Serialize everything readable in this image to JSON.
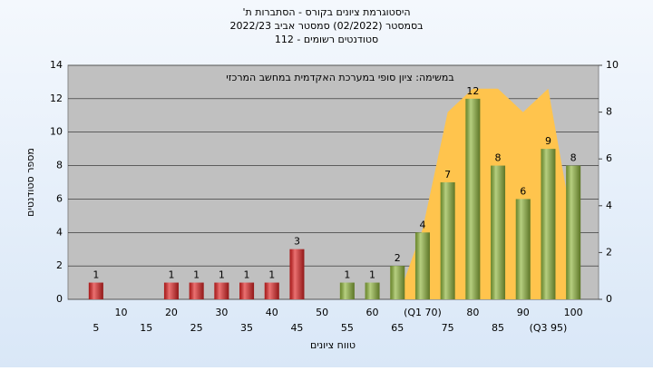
{
  "chart_data": {
    "type": "bar",
    "title": "'היסטוגרמת ציונים בקורס - הסתברות ת",
    "subtitle": "בסמסטר  (02/2022)  סמסטר אביב 2022/23",
    "subtitle2": "סטודנטים רשומים - 112",
    "annotation": "במשימה: ציון סופי במערכת האקדמית במחשב המרכזי",
    "x_label": "טווח ציונים",
    "y_label": "מספר סטודנטים",
    "categories": [
      "5",
      "10",
      "15",
      "20",
      "25",
      "30",
      "35",
      "40",
      "45",
      "50",
      "55",
      "60",
      "65",
      "(Q1 70)",
      "75",
      "80",
      "85",
      "90",
      "(Q3 95)",
      "100"
    ],
    "series": [
      {
        "type": "bar",
        "values": [
          1,
          0,
          0,
          1,
          1,
          1,
          1,
          1,
          3,
          0,
          1,
          1,
          2,
          4,
          7,
          12,
          8,
          6,
          9,
          8
        ],
        "colors": [
          "#e02424",
          "#e02424",
          "#e02424",
          "#e02424",
          "#e02424",
          "#e02424",
          "#e02424",
          "#e02424",
          "#e02424",
          "#e02424",
          "#8fb53c",
          "#8fb53c",
          "#8fb53c",
          "#8fb53c",
          "#8fb53c",
          "#8fb53c",
          "#8fb53c",
          "#8fb53c",
          "#8fb53c",
          "#8fb53c"
        ]
      },
      {
        "type": "area",
        "axis": "y2",
        "color": "#ffc44d",
        "values": [
          null,
          null,
          null,
          null,
          null,
          null,
          null,
          null,
          null,
          null,
          null,
          null,
          0,
          3,
          8,
          9,
          9,
          8,
          9,
          3
        ]
      }
    ],
    "ylim": [
      0,
      14
    ],
    "yticks": [
      0,
      2,
      4,
      6,
      8,
      10,
      12,
      14
    ],
    "y2lim": [
      0,
      10
    ],
    "y2ticks": [
      0,
      2,
      4,
      6,
      8,
      10
    ],
    "grid": true
  }
}
